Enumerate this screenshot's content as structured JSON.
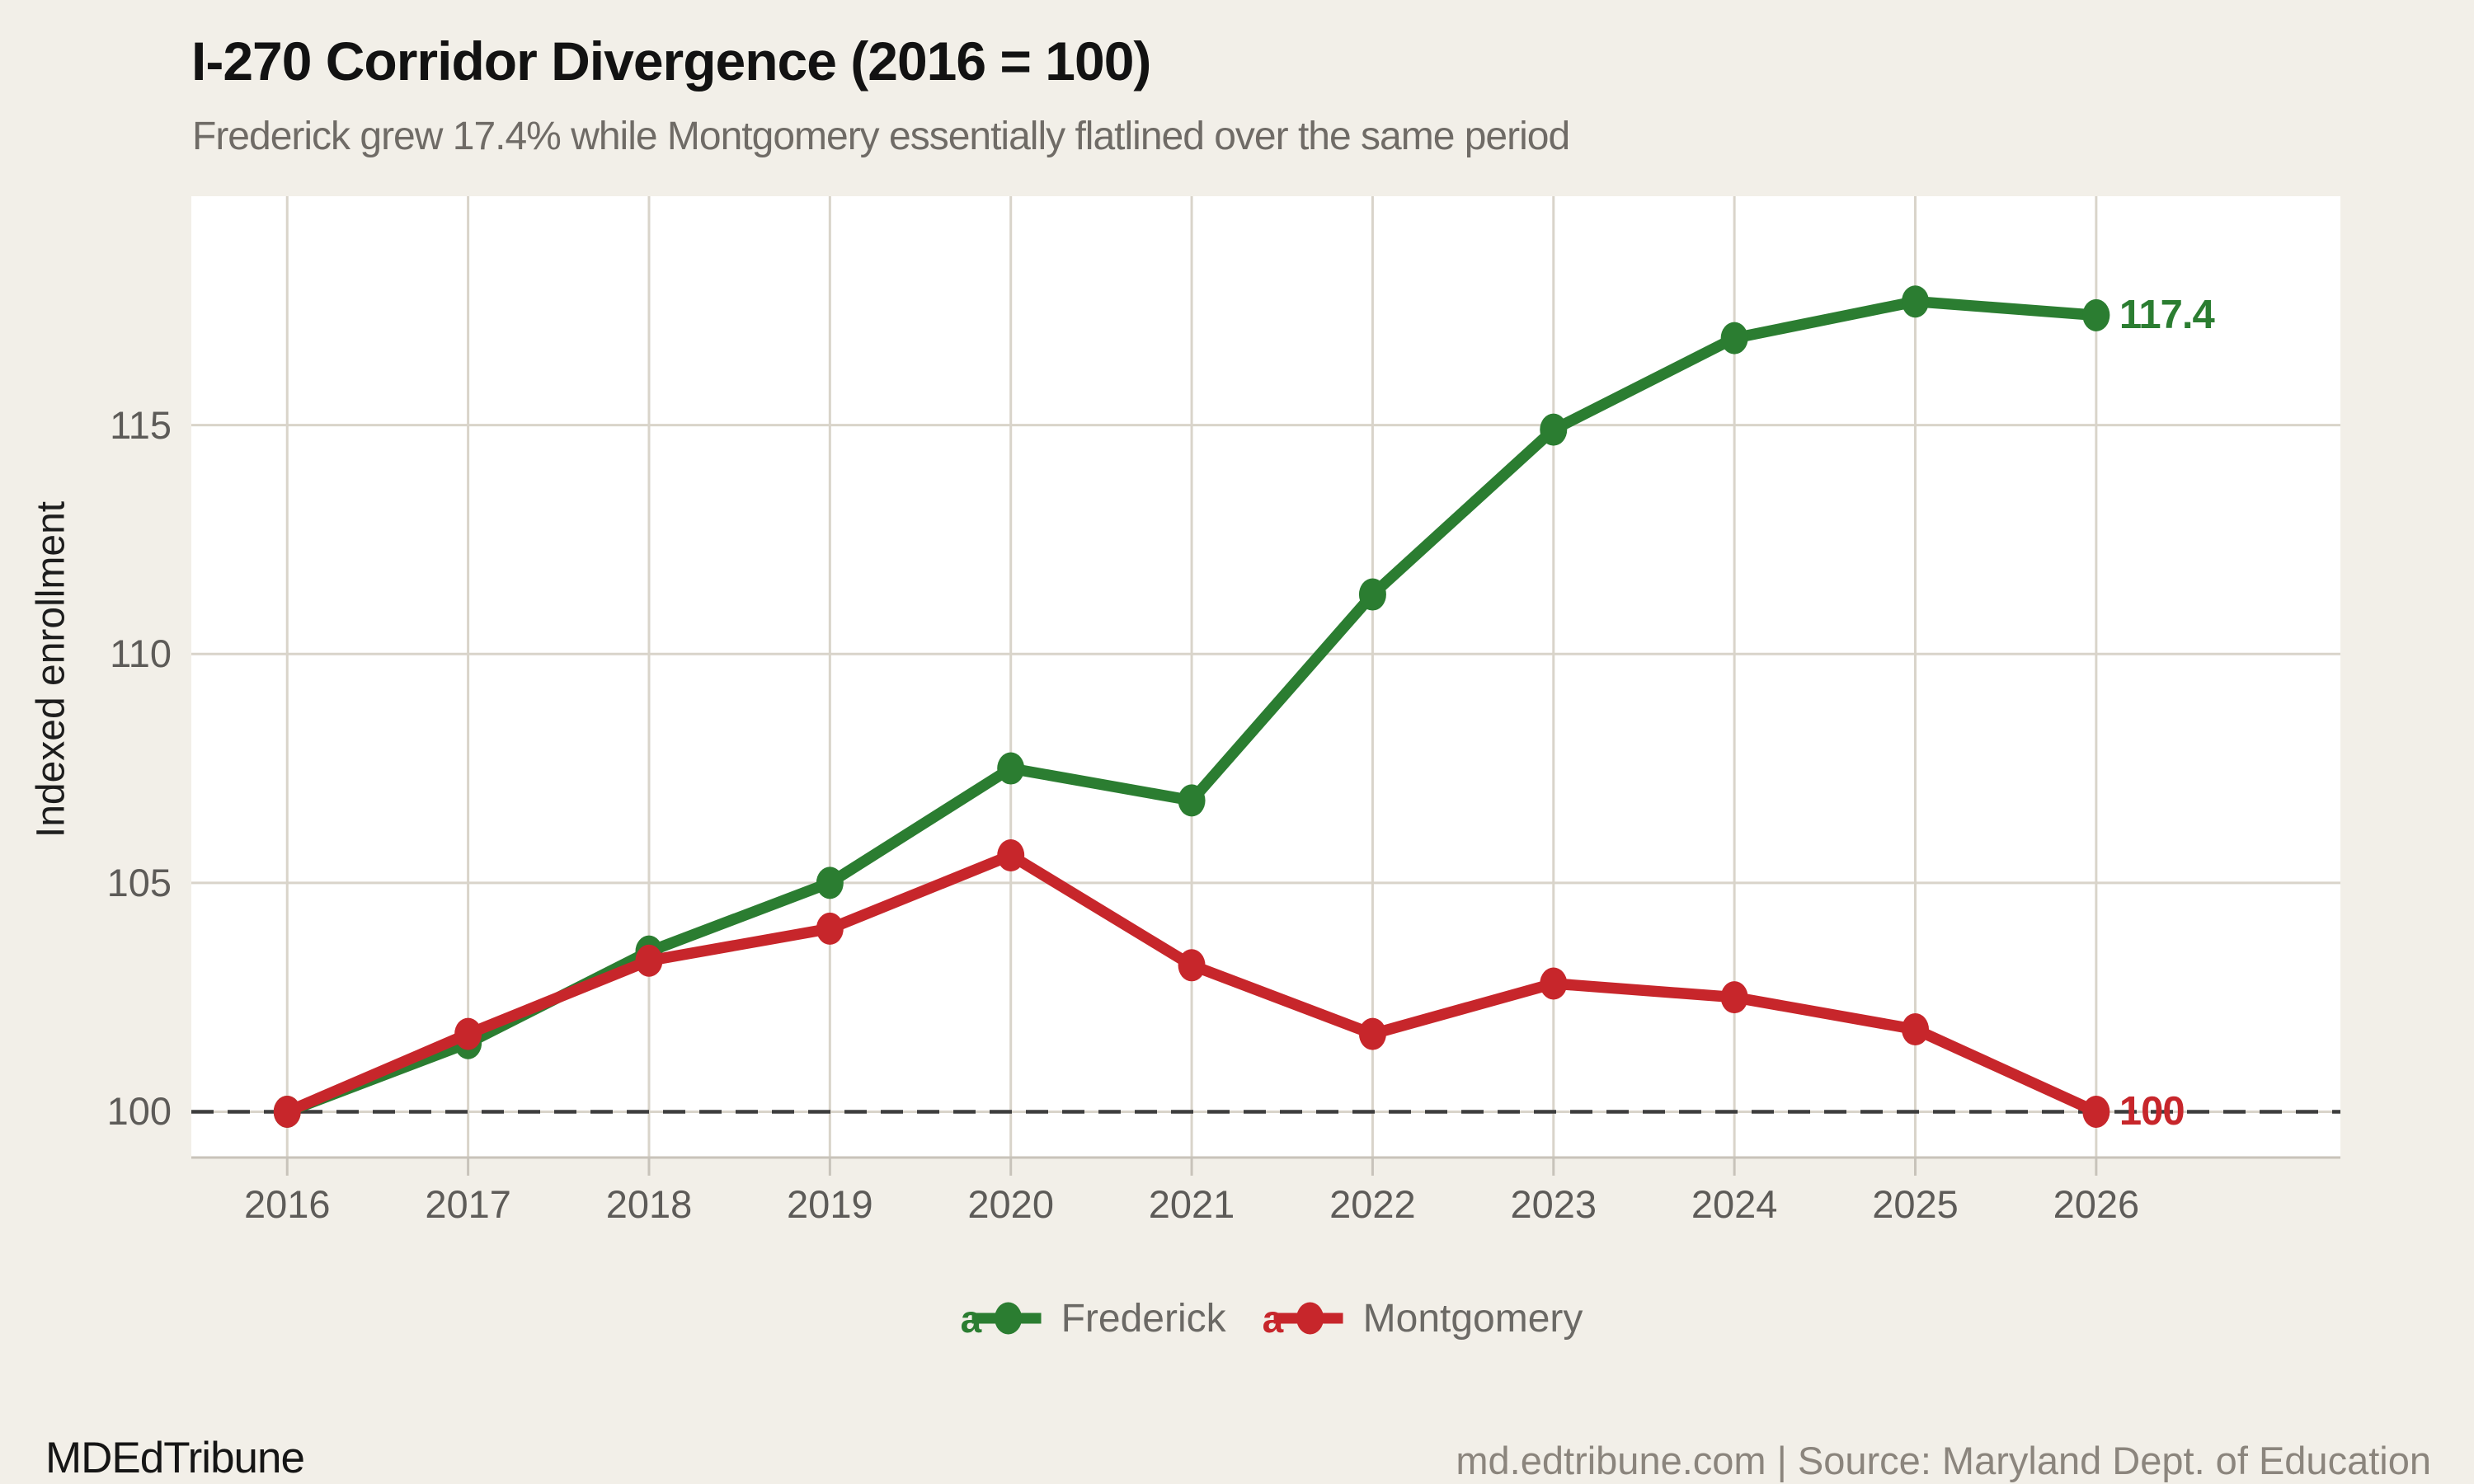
{
  "title": "I-270 Corridor Divergence (2016 = 100)",
  "subtitle": "Frederick grew 17.4% while Montgomery essentially flatlined over the same period",
  "footer": {
    "brand": "MDEdTribune",
    "source": "md.edtribune.com | Source: Maryland Dept. of Education"
  },
  "colors": {
    "background": "#f2efe8",
    "plot_background": "#ffffff",
    "grid": "#d9d4ca",
    "axis": "#c8c3ba",
    "baseline_dash": "#3d3d3d",
    "tick_text": "#5d5b58",
    "title_text": "#121212",
    "subtitle_text": "#6f6b66",
    "ylabel_text": "#1d1d1d",
    "legend_text": "#6b6965",
    "brand_text": "#151515",
    "footer_text": "#8b857d",
    "frederick_green": "#2b7d31",
    "montgomery_red": "#c7262b"
  },
  "chart_data": {
    "type": "line",
    "title": "I-270 Corridor Divergence (2016 = 100)",
    "subtitle": "Frederick grew 17.4% while Montgomery essentially flatlined over the same period",
    "xlabel": "",
    "ylabel": "Indexed enrollment",
    "x": [
      2016,
      2017,
      2018,
      2019,
      2020,
      2021,
      2022,
      2023,
      2024,
      2025,
      2026
    ],
    "series": [
      {
        "name": "Frederick",
        "color": "#2b7d31",
        "values": [
          100,
          101.5,
          103.5,
          105.0,
          107.5,
          106.8,
          111.3,
          114.9,
          116.9,
          117.7,
          117.4
        ],
        "end_label": "117.4"
      },
      {
        "name": "Montgomery",
        "color": "#c7262b",
        "values": [
          100,
          101.7,
          103.3,
          104.0,
          105.6,
          103.2,
          101.7,
          102.8,
          102.5,
          101.8,
          100
        ],
        "end_label": "100"
      }
    ],
    "yticks": [
      100,
      105,
      110,
      115
    ],
    "xlim": [
      2015.47,
      2027.35
    ],
    "ylim": [
      99,
      120
    ],
    "baseline": 100,
    "baseline_style": "dashed",
    "grid": true,
    "legend_position": "bottom-center",
    "marker": "circle"
  }
}
